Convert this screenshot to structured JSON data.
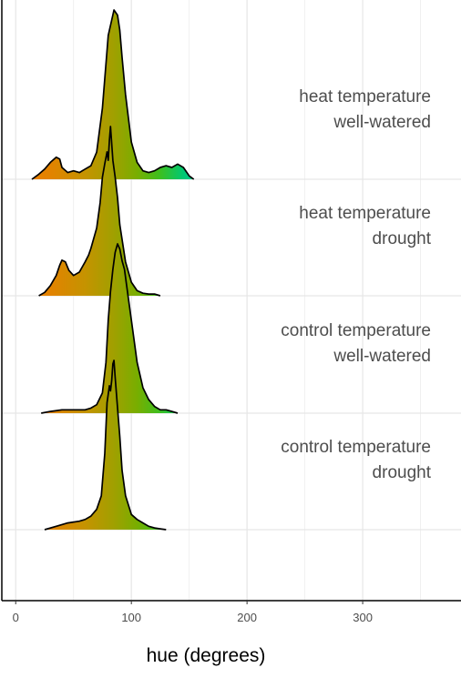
{
  "chart_data": {
    "type": "ridgeline",
    "title": "",
    "xlabel": "hue (degrees)",
    "ylabel": "",
    "xlim": [
      -12,
      385
    ],
    "x_ticks": [
      0,
      100,
      200,
      300
    ],
    "x_tick_labels": [
      "0",
      "100",
      "200",
      "300"
    ],
    "grid": true,
    "fill": "gradient by hue (orange → yellow-green → green)",
    "gradient_colors": {
      "0": "#f07f00",
      "30": "#e28300",
      "60": "#c59300",
      "85": "#a0a000",
      "105": "#78ae00",
      "125": "#3cbf20",
      "145": "#00c873",
      "160": "#00c89a"
    },
    "series": [
      {
        "label_lines": [
          "heat temperature",
          "well-watered"
        ],
        "x": [
          14,
          20,
          25,
          30,
          35,
          38,
          40,
          45,
          50,
          55,
          60,
          65,
          70,
          75,
          80,
          85,
          88,
          90,
          92,
          95,
          100,
          105,
          110,
          115,
          120,
          125,
          130,
          135,
          140,
          145,
          150,
          154
        ],
        "density": [
          0,
          0.03,
          0.06,
          0.1,
          0.13,
          0.12,
          0.07,
          0.04,
          0.05,
          0.04,
          0.06,
          0.08,
          0.16,
          0.42,
          0.85,
          1.0,
          0.97,
          0.88,
          0.72,
          0.5,
          0.22,
          0.1,
          0.05,
          0.04,
          0.05,
          0.07,
          0.08,
          0.07,
          0.09,
          0.07,
          0.02,
          0
        ]
      },
      {
        "label_lines": [
          "heat temperature",
          "drought"
        ],
        "x": [
          20,
          25,
          30,
          35,
          38,
          40,
          43,
          46,
          50,
          55,
          60,
          63,
          65,
          70,
          73,
          75,
          77,
          79,
          80,
          81,
          82,
          84,
          86,
          88,
          90,
          95,
          100,
          105,
          110,
          115,
          120,
          125
        ],
        "density": [
          0,
          0.02,
          0.06,
          0.12,
          0.18,
          0.21,
          0.2,
          0.15,
          0.12,
          0.14,
          0.2,
          0.24,
          0.28,
          0.4,
          0.55,
          0.7,
          0.78,
          0.85,
          0.8,
          0.92,
          1.0,
          0.8,
          0.7,
          0.58,
          0.42,
          0.2,
          0.08,
          0.03,
          0.015,
          0.01,
          0.01,
          0
        ]
      },
      {
        "label_lines": [
          "control temperature",
          "well-watered"
        ],
        "x": [
          22,
          30,
          40,
          50,
          60,
          65,
          70,
          75,
          78,
          80,
          82,
          84,
          86,
          88,
          90,
          92,
          94,
          96,
          100,
          105,
          110,
          115,
          120,
          125,
          130,
          135,
          140
        ],
        "density": [
          0,
          0.01,
          0.02,
          0.02,
          0.02,
          0.03,
          0.05,
          0.12,
          0.3,
          0.55,
          0.72,
          0.85,
          0.95,
          1.0,
          0.97,
          0.9,
          0.85,
          0.75,
          0.55,
          0.3,
          0.15,
          0.08,
          0.04,
          0.02,
          0.02,
          0.01,
          0
        ]
      },
      {
        "label_lines": [
          "control temperature",
          "drought"
        ],
        "x": [
          25,
          35,
          45,
          55,
          60,
          65,
          70,
          74,
          77,
          79,
          80,
          81,
          82,
          83,
          84,
          85,
          86,
          88,
          90,
          92,
          95,
          100,
          105,
          110,
          115,
          120,
          125,
          130
        ],
        "density": [
          0,
          0.02,
          0.04,
          0.05,
          0.06,
          0.08,
          0.12,
          0.2,
          0.45,
          0.75,
          0.8,
          0.85,
          0.82,
          0.88,
          0.98,
          1.0,
          0.9,
          0.72,
          0.55,
          0.35,
          0.2,
          0.09,
          0.06,
          0.04,
          0.02,
          0.01,
          0.005,
          0
        ]
      }
    ]
  }
}
